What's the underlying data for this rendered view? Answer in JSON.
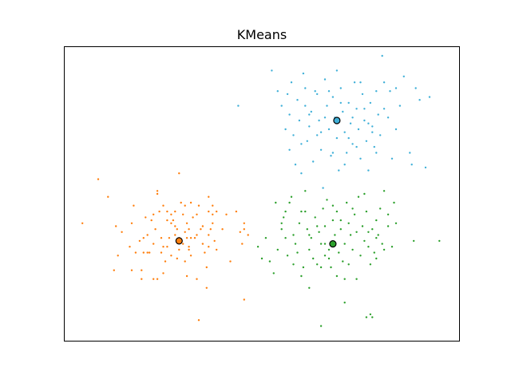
{
  "chart_data": {
    "type": "scatter",
    "title": "KMeans",
    "xlabel": "",
    "ylabel": "",
    "grid": false,
    "axis_ticks": false,
    "xlim": [
      0,
      100
    ],
    "ylim": [
      0,
      100
    ],
    "series": [
      {
        "color": "#ff7f0e",
        "centroid": [
          29,
          34
        ],
        "points": [
          [
            4.5,
            40
          ],
          [
            11,
            49
          ],
          [
            13,
            39
          ],
          [
            14.5,
            37
          ],
          [
            13.5,
            29
          ],
          [
            12.5,
            24
          ],
          [
            8.5,
            55
          ],
          [
            17.5,
            46
          ],
          [
            17,
            40
          ],
          [
            18,
            30
          ],
          [
            19.5,
            24
          ],
          [
            19,
            34
          ],
          [
            21,
            36
          ],
          [
            21.5,
            30
          ],
          [
            22,
            41
          ],
          [
            23.5,
            50
          ],
          [
            23.5,
            51
          ],
          [
            23,
            38
          ],
          [
            22.5,
            33
          ],
          [
            24.5,
            30
          ],
          [
            24.5,
            35
          ],
          [
            25,
            23
          ],
          [
            25.5,
            27
          ],
          [
            22.5,
            21
          ],
          [
            23.5,
            21
          ],
          [
            26,
            32
          ],
          [
            26.5,
            35
          ],
          [
            27,
            29
          ],
          [
            27.5,
            41
          ],
          [
            28,
            44
          ],
          [
            28.5,
            38
          ],
          [
            28,
            36
          ],
          [
            29,
            31
          ],
          [
            28.5,
            28
          ],
          [
            29.5,
            47
          ],
          [
            29,
            57
          ],
          [
            30,
            43
          ],
          [
            30.5,
            37
          ],
          [
            31,
            40
          ],
          [
            30,
            33
          ],
          [
            31.5,
            31
          ],
          [
            30.5,
            27
          ],
          [
            31,
            22
          ],
          [
            32,
            35
          ],
          [
            32.5,
            42
          ],
          [
            32,
            29
          ],
          [
            33.5,
            36
          ],
          [
            33.5,
            21
          ],
          [
            34,
            46
          ],
          [
            34.5,
            38
          ],
          [
            35,
            33
          ],
          [
            35.5,
            30
          ],
          [
            36,
            25
          ],
          [
            36.5,
            36
          ],
          [
            37,
            38
          ],
          [
            37.5,
            43
          ],
          [
            37.5,
            46
          ],
          [
            38,
            34
          ],
          [
            38.5,
            31
          ],
          [
            36,
            18
          ],
          [
            27,
            43
          ],
          [
            28,
            39
          ],
          [
            26,
            44
          ],
          [
            27,
            40
          ],
          [
            32,
            47
          ],
          [
            29,
            35
          ],
          [
            31,
            35
          ],
          [
            35,
            39
          ],
          [
            36.5,
            32
          ],
          [
            37.5,
            40
          ],
          [
            36.5,
            49
          ],
          [
            38.5,
            44
          ],
          [
            40,
            38
          ],
          [
            41,
            43
          ],
          [
            42,
            27
          ],
          [
            43.5,
            44
          ],
          [
            44.5,
            37
          ],
          [
            45.5,
            40
          ],
          [
            45.5,
            38
          ],
          [
            45,
            33
          ],
          [
            46.5,
            36
          ],
          [
            45.5,
            14
          ],
          [
            34,
            7
          ],
          [
            25,
            32
          ],
          [
            20,
            30
          ],
          [
            21,
            30
          ],
          [
            17,
            24
          ],
          [
            16.5,
            32
          ],
          [
            19.5,
            21
          ],
          [
            20,
            35
          ],
          [
            20.5,
            42
          ],
          [
            22.5,
            43
          ],
          [
            24,
            44
          ],
          [
            25,
            46
          ],
          [
            26,
            41
          ],
          [
            31.5,
            38
          ],
          [
            33,
            35
          ],
          [
            31.5,
            32
          ],
          [
            30.5,
            46
          ],
          [
            33.5,
            43
          ],
          [
            36.5,
            44
          ]
        ]
      },
      {
        "color": "#2ca02c",
        "centroid": [
          68,
          33
        ],
        "points": [
          [
            49,
            32
          ],
          [
            50,
            28
          ],
          [
            51,
            35
          ],
          [
            52,
            27
          ],
          [
            53,
            23
          ],
          [
            53.5,
            47
          ],
          [
            54,
            31
          ],
          [
            55,
            38
          ],
          [
            55.5,
            42
          ],
          [
            56,
            35
          ],
          [
            56.5,
            29
          ],
          [
            57,
            47
          ],
          [
            57.5,
            49
          ],
          [
            58,
            36
          ],
          [
            58.5,
            33
          ],
          [
            59,
            30
          ],
          [
            59.5,
            40
          ],
          [
            60,
            44
          ],
          [
            60.5,
            25
          ],
          [
            61,
            51
          ],
          [
            61.5,
            38
          ],
          [
            62,
            31
          ],
          [
            62.5,
            35
          ],
          [
            63,
            28
          ],
          [
            63.5,
            42
          ],
          [
            64,
            26
          ],
          [
            64.5,
            37
          ],
          [
            65,
            33
          ],
          [
            65.5,
            45
          ],
          [
            66,
            39
          ],
          [
            66.5,
            48
          ],
          [
            67,
            31
          ],
          [
            67.5,
            25
          ],
          [
            68,
            41
          ],
          [
            68.5,
            36
          ],
          [
            69,
            44
          ],
          [
            69.5,
            30
          ],
          [
            70,
            38
          ],
          [
            70.5,
            27
          ],
          [
            71,
            33
          ],
          [
            71.5,
            47
          ],
          [
            72,
            40
          ],
          [
            72.5,
            36
          ],
          [
            73,
            31
          ],
          [
            73.5,
            43
          ],
          [
            74,
            37
          ],
          [
            74.5,
            49
          ],
          [
            75,
            29
          ],
          [
            75.5,
            39
          ],
          [
            76,
            34
          ],
          [
            76.5,
            44
          ],
          [
            77,
            32
          ],
          [
            77.5,
            26
          ],
          [
            78,
            38
          ],
          [
            78.5,
            30
          ],
          [
            79,
            41
          ],
          [
            79.5,
            36
          ],
          [
            80,
            45
          ],
          [
            80.5,
            33
          ],
          [
            81,
            51
          ],
          [
            82,
            39
          ],
          [
            83,
            32
          ],
          [
            83.5,
            47
          ],
          [
            84,
            40
          ],
          [
            88.5,
            34
          ],
          [
            71,
            13
          ],
          [
            62,
            18
          ],
          [
            65,
            5
          ],
          [
            78,
            8
          ],
          [
            76.5,
            8
          ],
          [
            77.5,
            9
          ],
          [
            71,
            21
          ],
          [
            65,
            25
          ],
          [
            66,
            33
          ],
          [
            62,
            36
          ],
          [
            64,
            39
          ],
          [
            67,
            28
          ],
          [
            69,
            22
          ],
          [
            73,
            45
          ],
          [
            76,
            50
          ],
          [
            55,
            40
          ],
          [
            58,
            26
          ],
          [
            60,
            22
          ],
          [
            56,
            44
          ],
          [
            61,
            44
          ],
          [
            66,
            29
          ],
          [
            68,
            46
          ],
          [
            70,
            41
          ],
          [
            72,
            26
          ],
          [
            74,
            21
          ],
          [
            77,
            37
          ],
          [
            79,
            28
          ],
          [
            81,
            31
          ],
          [
            79,
            35
          ],
          [
            82,
            43
          ],
          [
            95,
            34
          ]
        ]
      },
      {
        "color": "#40b0d8",
        "centroid": [
          69,
          75
        ],
        "points": [
          [
            44,
            80
          ],
          [
            52.5,
            92
          ],
          [
            54,
            85
          ],
          [
            55,
            80
          ],
          [
            56,
            72
          ],
          [
            56.5,
            84
          ],
          [
            57,
            77
          ],
          [
            57.5,
            88
          ],
          [
            58,
            70
          ],
          [
            58.5,
            60
          ],
          [
            59,
            82
          ],
          [
            59.5,
            75
          ],
          [
            60,
            57
          ],
          [
            60.5,
            91
          ],
          [
            61,
            80
          ],
          [
            61.5,
            68
          ],
          [
            62,
            73
          ],
          [
            62.5,
            78
          ],
          [
            63,
            61
          ],
          [
            63.5,
            85
          ],
          [
            64,
            70
          ],
          [
            64.5,
            75
          ],
          [
            65,
            65
          ],
          [
            65.5,
            52
          ],
          [
            66,
            89
          ],
          [
            66.5,
            80
          ],
          [
            67,
            72
          ],
          [
            67.5,
            63
          ],
          [
            68,
            83
          ],
          [
            68.5,
            76
          ],
          [
            69,
            69
          ],
          [
            69.5,
            58
          ],
          [
            70,
            86
          ],
          [
            70.5,
            78
          ],
          [
            71,
            71
          ],
          [
            71.5,
            64
          ],
          [
            72,
            81
          ],
          [
            72.5,
            74
          ],
          [
            73,
            67
          ],
          [
            73.5,
            88
          ],
          [
            74,
            79
          ],
          [
            74.5,
            72
          ],
          [
            75,
            62
          ],
          [
            75.5,
            84
          ],
          [
            76,
            75
          ],
          [
            76.5,
            68
          ],
          [
            77,
            58
          ],
          [
            77.5,
            81
          ],
          [
            78,
            73
          ],
          [
            78.5,
            66
          ],
          [
            79,
            85
          ],
          [
            79.5,
            77
          ],
          [
            80,
            70
          ],
          [
            80.5,
            97
          ],
          [
            81,
            88
          ],
          [
            82,
            76
          ],
          [
            82.5,
            85
          ],
          [
            83,
            62
          ],
          [
            84,
            72
          ],
          [
            85,
            80
          ],
          [
            86,
            90
          ],
          [
            87.5,
            64
          ],
          [
            88,
            60
          ],
          [
            89,
            86
          ],
          [
            90,
            82
          ],
          [
            91.5,
            59
          ],
          [
            92.5,
            83
          ],
          [
            66,
            76
          ],
          [
            68,
            64
          ],
          [
            70,
            81
          ],
          [
            72,
            69
          ],
          [
            74,
            66
          ],
          [
            76,
            79
          ],
          [
            78,
            71
          ],
          [
            64,
            84
          ],
          [
            62,
            77
          ],
          [
            60,
            67
          ],
          [
            65,
            71
          ],
          [
            67,
            85
          ],
          [
            71,
            60
          ],
          [
            73,
            76
          ],
          [
            75,
            88
          ],
          [
            77,
            74
          ],
          [
            79,
            64
          ],
          [
            81,
            79
          ],
          [
            57,
            65
          ],
          [
            61,
            86
          ],
          [
            69,
            92
          ],
          [
            84,
            86
          ]
        ]
      }
    ]
  }
}
